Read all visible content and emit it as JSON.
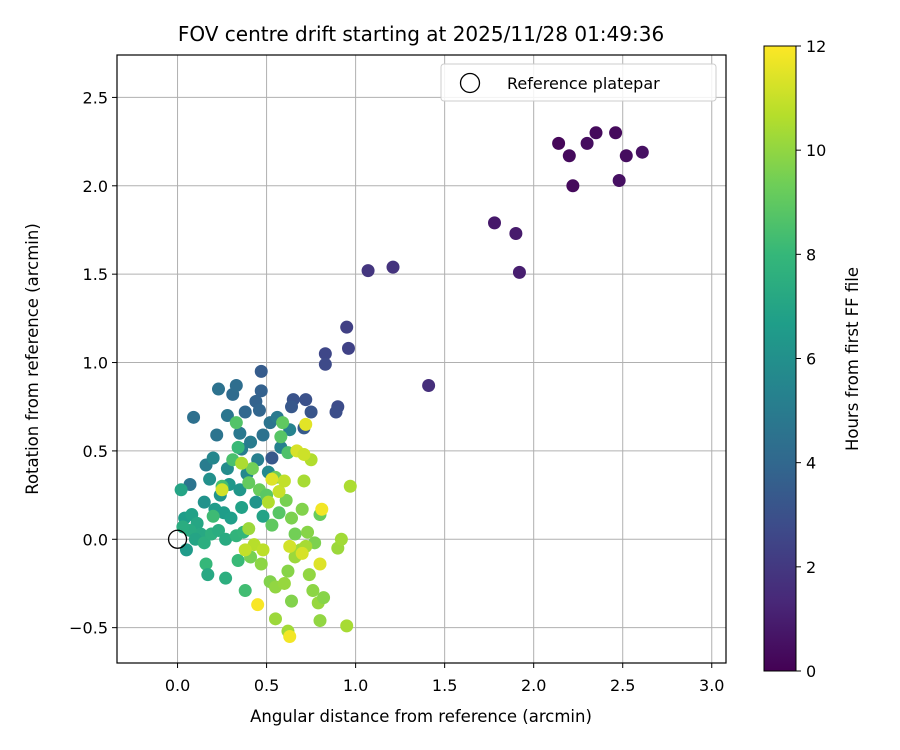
{
  "chart_data": {
    "type": "scatter",
    "title": "FOV centre drift starting at 2025/11/28 01:49:36",
    "xlabel": "Angular distance from reference (arcmin)",
    "ylabel": "Rotation from reference (arcmin)",
    "xlim": [
      -0.34,
      3.08
    ],
    "ylim": [
      -0.7,
      2.74
    ],
    "xticks": [
      0.0,
      0.5,
      1.0,
      1.5,
      2.0,
      2.5,
      3.0
    ],
    "xtick_labels": [
      "0.0",
      "0.5",
      "1.0",
      "1.5",
      "2.0",
      "2.5",
      "3.0"
    ],
    "yticks": [
      -0.5,
      0.0,
      0.5,
      1.0,
      1.5,
      2.0,
      2.5
    ],
    "ytick_labels": [
      "−0.5",
      "0.0",
      "0.5",
      "1.0",
      "1.5",
      "2.0",
      "2.5"
    ],
    "grid": true,
    "legend": {
      "position": "top-right",
      "entries": [
        "Reference platepar"
      ]
    },
    "reference_point": {
      "x": 0.0,
      "y": 0.0,
      "label": "Reference platepar"
    },
    "colorbar": {
      "label": "Hours from first FF file",
      "min": 0,
      "max": 12,
      "ticks": [
        0,
        2,
        4,
        6,
        8,
        10,
        12
      ],
      "tick_labels": [
        "0",
        "2",
        "4",
        "6",
        "8",
        "10",
        "12"
      ],
      "colormap": "viridis"
    },
    "colormap_stops": [
      "#440154",
      "#482878",
      "#3e4989",
      "#31688e",
      "#26828e",
      "#1f9e89",
      "#35b779",
      "#6ece58",
      "#b5de2b",
      "#fde725"
    ],
    "points": [
      {
        "x": 2.14,
        "y": 2.24,
        "h": 0.2
      },
      {
        "x": 2.2,
        "y": 2.17,
        "h": 0.3
      },
      {
        "x": 2.22,
        "y": 2.0,
        "h": 0.3
      },
      {
        "x": 2.3,
        "y": 2.24,
        "h": 0.4
      },
      {
        "x": 2.35,
        "y": 2.3,
        "h": 0.3
      },
      {
        "x": 2.46,
        "y": 2.3,
        "h": 0.3
      },
      {
        "x": 2.52,
        "y": 2.17,
        "h": 0.4
      },
      {
        "x": 2.61,
        "y": 2.19,
        "h": 0.5
      },
      {
        "x": 2.48,
        "y": 2.03,
        "h": 0.5
      },
      {
        "x": 1.78,
        "y": 1.79,
        "h": 0.8
      },
      {
        "x": 1.9,
        "y": 1.73,
        "h": 0.9
      },
      {
        "x": 1.92,
        "y": 1.51,
        "h": 1.0
      },
      {
        "x": 1.21,
        "y": 1.54,
        "h": 1.8
      },
      {
        "x": 1.07,
        "y": 1.52,
        "h": 1.9
      },
      {
        "x": 1.41,
        "y": 0.87,
        "h": 1.6
      },
      {
        "x": 0.95,
        "y": 1.2,
        "h": 2.3
      },
      {
        "x": 0.96,
        "y": 1.08,
        "h": 2.4
      },
      {
        "x": 0.83,
        "y": 1.05,
        "h": 2.6
      },
      {
        "x": 0.83,
        "y": 0.99,
        "h": 2.7
      },
      {
        "x": 0.9,
        "y": 0.75,
        "h": 2.8
      },
      {
        "x": 0.89,
        "y": 0.72,
        "h": 2.9
      },
      {
        "x": 0.72,
        "y": 0.79,
        "h": 3.0
      },
      {
        "x": 0.65,
        "y": 0.79,
        "h": 3.1
      },
      {
        "x": 0.75,
        "y": 0.72,
        "h": 3.2
      },
      {
        "x": 0.64,
        "y": 0.75,
        "h": 3.3
      },
      {
        "x": 0.53,
        "y": 0.46,
        "h": 3.3
      },
      {
        "x": 0.71,
        "y": 0.63,
        "h": 3.4
      },
      {
        "x": 0.47,
        "y": 0.95,
        "h": 3.5
      },
      {
        "x": 0.47,
        "y": 0.84,
        "h": 3.7
      },
      {
        "x": 0.44,
        "y": 0.78,
        "h": 3.8
      },
      {
        "x": 0.46,
        "y": 0.73,
        "h": 3.9
      },
      {
        "x": 0.38,
        "y": 0.72,
        "h": 4.0
      },
      {
        "x": 0.31,
        "y": 0.82,
        "h": 4.2
      },
      {
        "x": 0.33,
        "y": 0.87,
        "h": 4.3
      },
      {
        "x": 0.23,
        "y": 0.85,
        "h": 4.5
      },
      {
        "x": 0.09,
        "y": 0.69,
        "h": 4.4
      },
      {
        "x": 0.22,
        "y": 0.59,
        "h": 4.6
      },
      {
        "x": 0.28,
        "y": 0.7,
        "h": 4.7
      },
      {
        "x": 0.35,
        "y": 0.6,
        "h": 4.8
      },
      {
        "x": 0.48,
        "y": 0.59,
        "h": 4.5
      },
      {
        "x": 0.52,
        "y": 0.66,
        "h": 4.6
      },
      {
        "x": 0.56,
        "y": 0.69,
        "h": 4.9
      },
      {
        "x": 0.41,
        "y": 0.55,
        "h": 5.0
      },
      {
        "x": 0.36,
        "y": 0.51,
        "h": 5.1
      },
      {
        "x": 0.45,
        "y": 0.45,
        "h": 5.2
      },
      {
        "x": 0.58,
        "y": 0.52,
        "h": 5.3
      },
      {
        "x": 0.63,
        "y": 0.62,
        "h": 5.4
      },
      {
        "x": 0.07,
        "y": 0.31,
        "h": 4.6
      },
      {
        "x": 0.16,
        "y": 0.42,
        "h": 5.0
      },
      {
        "x": 0.2,
        "y": 0.46,
        "h": 5.5
      },
      {
        "x": 0.28,
        "y": 0.4,
        "h": 5.8
      },
      {
        "x": 0.39,
        "y": 0.37,
        "h": 5.6
      },
      {
        "x": 0.51,
        "y": 0.38,
        "h": 5.7
      },
      {
        "x": 0.18,
        "y": 0.34,
        "h": 6.0
      },
      {
        "x": 0.24,
        "y": 0.25,
        "h": 6.2
      },
      {
        "x": 0.29,
        "y": 0.31,
        "h": 6.4
      },
      {
        "x": 0.35,
        "y": 0.28,
        "h": 6.3
      },
      {
        "x": 0.15,
        "y": 0.21,
        "h": 6.1
      },
      {
        "x": 0.21,
        "y": 0.17,
        "h": 6.5
      },
      {
        "x": 0.26,
        "y": 0.15,
        "h": 6.6
      },
      {
        "x": 0.3,
        "y": 0.12,
        "h": 6.7
      },
      {
        "x": 0.36,
        "y": 0.18,
        "h": 6.8
      },
      {
        "x": 0.44,
        "y": 0.21,
        "h": 6.2
      },
      {
        "x": 0.48,
        "y": 0.13,
        "h": 6.9
      },
      {
        "x": 0.02,
        "y": 0.28,
        "h": 7.0
      },
      {
        "x": 0.04,
        "y": 0.12,
        "h": 6.6
      },
      {
        "x": 0.08,
        "y": 0.14,
        "h": 6.8
      },
      {
        "x": 0.11,
        "y": 0.09,
        "h": 7.1
      },
      {
        "x": 0.13,
        "y": 0.03,
        "h": 7.2
      },
      {
        "x": 0.07,
        "y": 0.05,
        "h": 7.3
      },
      {
        "x": 0.03,
        "y": 0.07,
        "h": 7.4
      },
      {
        "x": 0.1,
        "y": 0.0,
        "h": 7.0
      },
      {
        "x": 0.15,
        "y": -0.02,
        "h": 7.5
      },
      {
        "x": 0.19,
        "y": 0.03,
        "h": 7.6
      },
      {
        "x": 0.23,
        "y": 0.05,
        "h": 7.4
      },
      {
        "x": 0.27,
        "y": 0.0,
        "h": 7.3
      },
      {
        "x": 0.33,
        "y": 0.02,
        "h": 7.8
      },
      {
        "x": 0.37,
        "y": 0.04,
        "h": 7.9
      },
      {
        "x": 0.05,
        "y": -0.06,
        "h": 6.5
      },
      {
        "x": 0.16,
        "y": -0.14,
        "h": 8.0
      },
      {
        "x": 0.17,
        "y": -0.2,
        "h": 7.2
      },
      {
        "x": 0.27,
        "y": -0.22,
        "h": 7.5
      },
      {
        "x": 0.34,
        "y": -0.12,
        "h": 8.1
      },
      {
        "x": 0.38,
        "y": -0.29,
        "h": 8.3
      },
      {
        "x": 0.2,
        "y": 0.13,
        "h": 8.2
      },
      {
        "x": 0.25,
        "y": 0.3,
        "h": 8.4
      },
      {
        "x": 0.31,
        "y": 0.45,
        "h": 8.5
      },
      {
        "x": 0.34,
        "y": 0.52,
        "h": 8.1
      },
      {
        "x": 0.33,
        "y": 0.66,
        "h": 8.7
      },
      {
        "x": 0.58,
        "y": 0.58,
        "h": 8.8
      },
      {
        "x": 0.62,
        "y": 0.49,
        "h": 8.6
      },
      {
        "x": 0.59,
        "y": 0.66,
        "h": 9.0
      },
      {
        "x": 0.4,
        "y": 0.32,
        "h": 9.1
      },
      {
        "x": 0.46,
        "y": 0.28,
        "h": 9.2
      },
      {
        "x": 0.5,
        "y": 0.25,
        "h": 8.9
      },
      {
        "x": 0.55,
        "y": 0.35,
        "h": 9.3
      },
      {
        "x": 0.42,
        "y": 0.4,
        "h": 9.4
      },
      {
        "x": 0.53,
        "y": 0.08,
        "h": 9.0
      },
      {
        "x": 0.57,
        "y": 0.15,
        "h": 8.8
      },
      {
        "x": 0.61,
        "y": 0.22,
        "h": 9.5
      },
      {
        "x": 0.64,
        "y": 0.12,
        "h": 9.6
      },
      {
        "x": 0.66,
        "y": 0.03,
        "h": 9.4
      },
      {
        "x": 0.7,
        "y": 0.17,
        "h": 9.7
      },
      {
        "x": 0.73,
        "y": 0.04,
        "h": 9.8
      },
      {
        "x": 0.77,
        "y": -0.02,
        "h": 9.6
      },
      {
        "x": 0.8,
        "y": 0.14,
        "h": 9.2
      },
      {
        "x": 0.41,
        "y": -0.1,
        "h": 9.5
      },
      {
        "x": 0.47,
        "y": -0.14,
        "h": 9.9
      },
      {
        "x": 0.52,
        "y": -0.24,
        "h": 9.7
      },
      {
        "x": 0.55,
        "y": -0.27,
        "h": 10.0
      },
      {
        "x": 0.6,
        "y": -0.25,
        "h": 10.1
      },
      {
        "x": 0.62,
        "y": -0.18,
        "h": 9.8
      },
      {
        "x": 0.66,
        "y": -0.1,
        "h": 10.2
      },
      {
        "x": 0.69,
        "y": -0.06,
        "h": 10.3
      },
      {
        "x": 0.72,
        "y": -0.04,
        "h": 10.4
      },
      {
        "x": 0.74,
        "y": -0.2,
        "h": 10.0
      },
      {
        "x": 0.76,
        "y": -0.29,
        "h": 9.9
      },
      {
        "x": 0.79,
        "y": -0.36,
        "h": 10.1
      },
      {
        "x": 0.82,
        "y": -0.33,
        "h": 9.8
      },
      {
        "x": 0.64,
        "y": -0.35,
        "h": 9.7
      },
      {
        "x": 0.55,
        "y": -0.45,
        "h": 10.2
      },
      {
        "x": 0.62,
        "y": -0.52,
        "h": 10.3
      },
      {
        "x": 0.8,
        "y": -0.46,
        "h": 10.0
      },
      {
        "x": 0.95,
        "y": -0.49,
        "h": 10.4
      },
      {
        "x": 0.9,
        "y": -0.05,
        "h": 10.2
      },
      {
        "x": 0.92,
        "y": 0.0,
        "h": 10.3
      },
      {
        "x": 0.97,
        "y": 0.3,
        "h": 10.5
      },
      {
        "x": 0.75,
        "y": 0.45,
        "h": 10.6
      },
      {
        "x": 0.71,
        "y": 0.33,
        "h": 10.4
      },
      {
        "x": 0.36,
        "y": 0.43,
        "h": 10.5
      },
      {
        "x": 0.4,
        "y": 0.06,
        "h": 10.2
      },
      {
        "x": 0.43,
        "y": -0.03,
        "h": 10.7
      },
      {
        "x": 0.48,
        "y": -0.06,
        "h": 10.8
      },
      {
        "x": 0.38,
        "y": -0.06,
        "h": 10.9
      },
      {
        "x": 0.51,
        "y": 0.21,
        "h": 10.6
      },
      {
        "x": 0.57,
        "y": 0.27,
        "h": 11.0
      },
      {
        "x": 0.6,
        "y": 0.33,
        "h": 10.9
      },
      {
        "x": 0.25,
        "y": 0.28,
        "h": 11.2
      },
      {
        "x": 0.67,
        "y": 0.5,
        "h": 11.3
      },
      {
        "x": 0.71,
        "y": 0.48,
        "h": 11.1
      },
      {
        "x": 0.72,
        "y": 0.65,
        "h": 11.5
      },
      {
        "x": 0.53,
        "y": 0.34,
        "h": 11.4
      },
      {
        "x": 0.63,
        "y": -0.04,
        "h": 11.2
      },
      {
        "x": 0.7,
        "y": -0.08,
        "h": 11.3
      },
      {
        "x": 0.8,
        "y": -0.14,
        "h": 11.4
      },
      {
        "x": 0.81,
        "y": 0.17,
        "h": 11.8
      },
      {
        "x": 0.45,
        "y": -0.37,
        "h": 11.9
      },
      {
        "x": 0.63,
        "y": -0.55,
        "h": 11.8
      }
    ]
  }
}
